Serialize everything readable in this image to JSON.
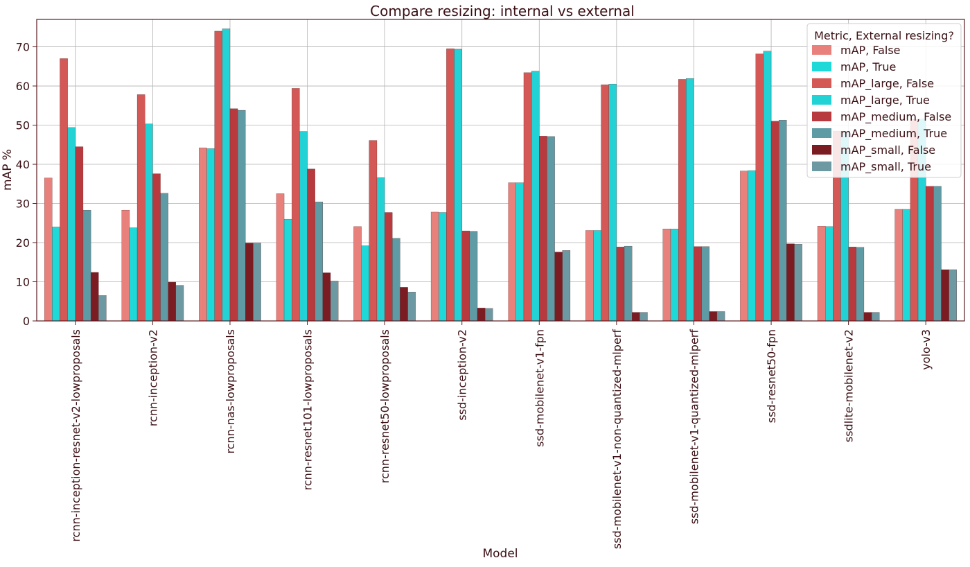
{
  "chart_data": {
    "type": "bar",
    "title": "Compare resizing: internal vs external",
    "xlabel": "Model",
    "ylabel": "mAP %",
    "ylim": [
      0,
      77
    ],
    "yticks": [
      0,
      10,
      20,
      30,
      40,
      50,
      60,
      70
    ],
    "grid": true,
    "legend": {
      "title": "Metric, External resizing?",
      "placement": "top-right"
    },
    "categories": [
      "rcnn-inception-resnet-v2-lowproposals",
      "rcnn-inception-v2",
      "rcnn-nas-lowproposals",
      "rcnn-resnet101-lowproposals",
      "rcnn-resnet50-lowproposals",
      "ssd-inception-v2",
      "ssd-mobilenet-v1-fpn",
      "ssd-mobilenet-v1-non-quantized-mlperf",
      "ssd-mobilenet-v1-quantized-mlperf",
      "ssd-resnet50-fpn",
      "ssdlite-mobilenet-v2",
      "yolo-v3"
    ],
    "series": [
      {
        "name": "mAP, False",
        "color": "#e8817b",
        "values": [
          36.5,
          28.3,
          44.2,
          32.5,
          24.1,
          27.8,
          35.3,
          23.1,
          23.5,
          38.3,
          24.2,
          28.5
        ]
      },
      {
        "name": "mAP, True",
        "color": "#1fd9d9",
        "values": [
          24.0,
          23.8,
          44.0,
          26.0,
          19.2,
          27.7,
          35.3,
          23.1,
          23.5,
          38.4,
          24.1,
          28.5
        ]
      },
      {
        "name": "mAP_large, False",
        "color": "#d45856",
        "values": [
          67.0,
          57.8,
          74.0,
          59.4,
          46.1,
          69.5,
          63.4,
          60.3,
          61.7,
          68.2,
          48.5,
          51.5
        ]
      },
      {
        "name": "mAP_large, True",
        "color": "#22d2d4",
        "values": [
          49.4,
          50.3,
          74.6,
          48.4,
          36.6,
          69.4,
          63.8,
          60.5,
          61.9,
          68.9,
          48.4,
          51.6
        ]
      },
      {
        "name": "mAP_medium, False",
        "color": "#b93a3e",
        "values": [
          44.5,
          37.6,
          54.2,
          38.8,
          27.7,
          23.0,
          47.2,
          18.9,
          19.0,
          51.0,
          18.9,
          34.4
        ]
      },
      {
        "name": "mAP_medium, True",
        "color": "#5e9ba4",
        "values": [
          28.3,
          32.6,
          53.8,
          30.4,
          21.1,
          22.9,
          47.1,
          19.1,
          19.0,
          51.3,
          18.8,
          34.4
        ]
      },
      {
        "name": "mAP_small, False",
        "color": "#7b1c22",
        "values": [
          12.4,
          9.9,
          19.9,
          12.3,
          8.6,
          3.3,
          17.6,
          2.2,
          2.4,
          19.7,
          2.2,
          13.1
        ]
      },
      {
        "name": "mAP_small, True",
        "color": "#6d9aa2",
        "values": [
          6.5,
          9.1,
          19.9,
          10.2,
          7.4,
          3.2,
          18.0,
          2.2,
          2.4,
          19.6,
          2.2,
          13.1
        ]
      }
    ]
  }
}
